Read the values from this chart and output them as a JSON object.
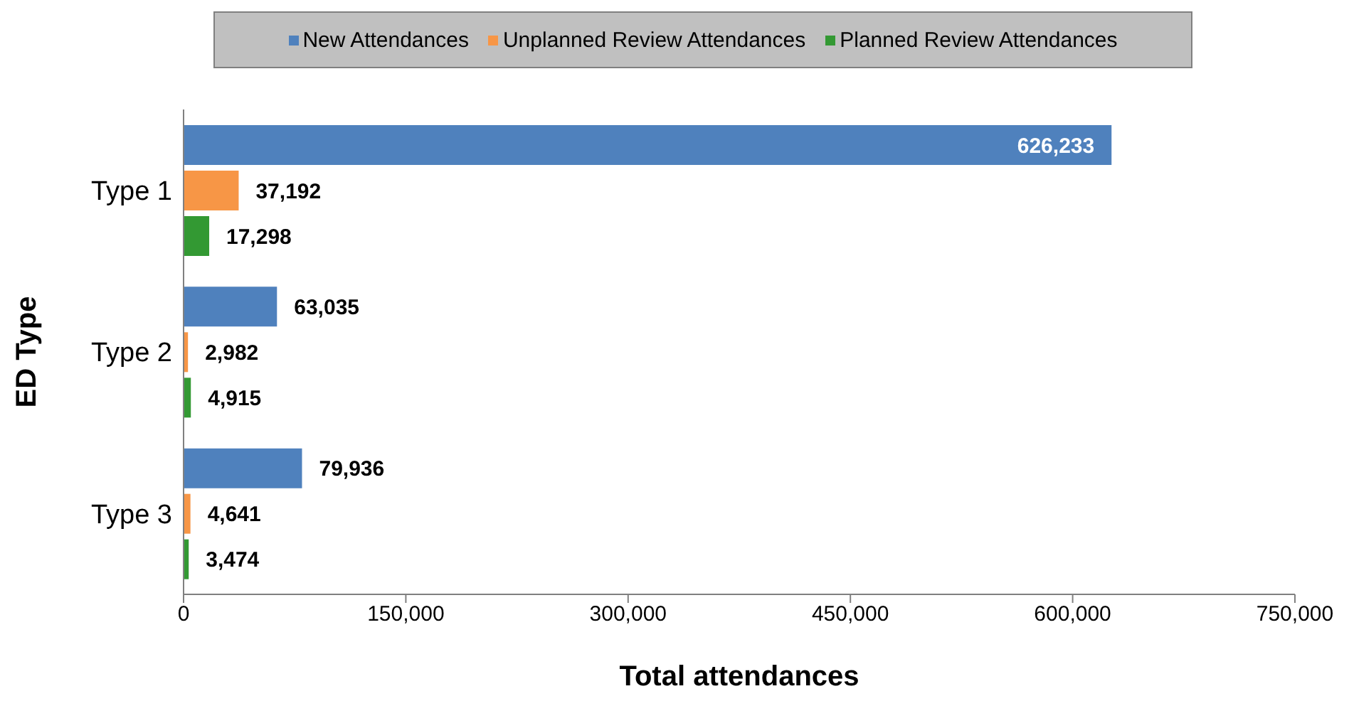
{
  "chart_data": {
    "type": "bar",
    "orientation": "horizontal",
    "xlabel": "Total attendances",
    "ylabel": "ED Type",
    "categories": [
      "Type 1",
      "Type 2",
      "Type 3"
    ],
    "series": [
      {
        "name": "New Attendances",
        "color": "#4f81bd",
        "values": [
          626233,
          63035,
          79936
        ],
        "value_labels": [
          "626,233",
          "63,035",
          "79,936"
        ]
      },
      {
        "name": "Unplanned Review Attendances",
        "color": "#f79646",
        "values": [
          37192,
          2982,
          4641
        ],
        "value_labels": [
          "37,192",
          "2,982",
          "4,641"
        ]
      },
      {
        "name": "Planned Review Attendances",
        "color": "#339933",
        "values": [
          17298,
          4915,
          3474
        ],
        "value_labels": [
          "17,298",
          "4,915",
          "3,474"
        ]
      }
    ],
    "xlim": [
      0,
      750000
    ],
    "xticks": [
      0,
      {
        "value": 150000,
        "label": "150,000"
      },
      {
        "value": 300000,
        "label": "300,000"
      },
      {
        "value": 450000,
        "label": "450,000"
      },
      {
        "value": 600000,
        "label": "600,000"
      },
      {
        "value": 750000,
        "label": "750,000"
      }
    ],
    "legend": "top"
  }
}
